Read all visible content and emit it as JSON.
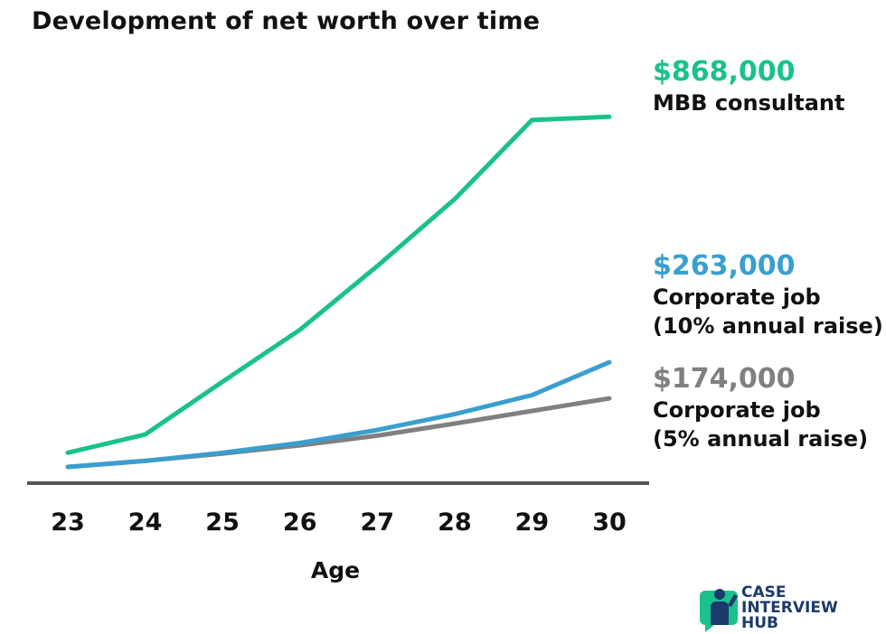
{
  "title": "Development of net worth over time",
  "chart_data": {
    "type": "line",
    "title": "Development of net worth over time",
    "xlabel": "Age",
    "ylabel": "",
    "x": [
      23,
      24,
      25,
      26,
      27,
      28,
      29,
      30
    ],
    "xlim": [
      23,
      30
    ],
    "ylim": [
      -35000,
      1000000
    ],
    "grid": false,
    "legend": "direct labels at right end of lines",
    "series": [
      {
        "name": "MBB consultant",
        "color": "#19c28a",
        "values": [
          40000,
          85000,
          215000,
          343000,
          500000,
          665000,
          860000,
          868000
        ],
        "end_label": "$868,000"
      },
      {
        "name": "Corporate job\n(10% annual raise)",
        "color": "#3a9fcf",
        "values": [
          5000,
          20000,
          40000,
          64000,
          96000,
          135000,
          182000,
          263000
        ],
        "end_label": "$263,000"
      },
      {
        "name": "Corporate job\n(5% annual raise)",
        "color": "#808080",
        "values": [
          5000,
          20000,
          38000,
          58000,
          82000,
          112000,
          143000,
          174000
        ],
        "end_label": "$174,000"
      }
    ]
  },
  "annotations": [
    {
      "value": "$868,000",
      "label_lines": [
        "MBB consultant"
      ],
      "color": "#19c28a"
    },
    {
      "value": "$263,000",
      "label_lines": [
        "Corporate job",
        "(10% annual raise)"
      ],
      "color": "#3a9fcf"
    },
    {
      "value": "$174,000",
      "label_lines": [
        "Corporate job",
        "(5% annual raise)"
      ],
      "color": "#808080"
    }
  ],
  "logo": {
    "lines": [
      "CASE",
      "INTERVIEW",
      "HUB"
    ],
    "icon": "person-chat-bubble-icon",
    "color": "#1d3a6c",
    "accent": "#19c28a"
  }
}
